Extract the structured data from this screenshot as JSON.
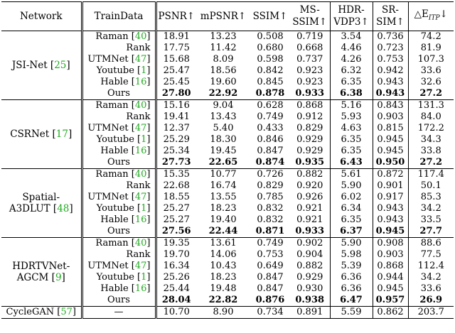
{
  "headers": {
    "network": "Network",
    "traindata": "TrainData",
    "psnr": "PSNR↑",
    "mpsnr": "mPSNR↑",
    "ssim": "SSIM↑",
    "msssim_l1": "MS-",
    "msssim_l2": "SSIM↑",
    "hdrvdp_l1": "HDR-",
    "hdrvdp_l2": "VDP3↑",
    "srsim_l1": "SR-",
    "srsim_l2": "SIM↑",
    "delta_e": "△E",
    "delta_e_sub": "ITP",
    "delta_e_arrow": "↓"
  },
  "groups": [
    {
      "network": "JSI-Net",
      "network_lines": [
        "JSI-Net [25]"
      ],
      "rows": [
        {
          "train": "Raman",
          "cite": "40",
          "vals": [
            "18.91",
            "13.23",
            "0.508",
            "0.719",
            "3.54",
            "0.736",
            "74.2"
          ]
        },
        {
          "train": "Rank",
          "cite": "",
          "vals": [
            "17.75",
            "11.42",
            "0.680",
            "0.668",
            "4.46",
            "0.723",
            "81.9"
          ]
        },
        {
          "train": "UTMNet",
          "cite": "47",
          "vals": [
            "15.68",
            "8.09",
            "0.598",
            "0.737",
            "4.26",
            "0.753",
            "107.3"
          ]
        },
        {
          "train": "Youtube",
          "cite": "1",
          "vals": [
            "25.47",
            "18.56",
            "0.842",
            "0.923",
            "6.32",
            "0.942",
            "33.6"
          ]
        },
        {
          "train": "Hable",
          "cite": "16",
          "vals": [
            "25.45",
            "19.60",
            "0.845",
            "0.923",
            "6.35",
            "0.943",
            "32.6"
          ]
        },
        {
          "train": "Ours",
          "cite": "",
          "vals": [
            "27.80",
            "22.92",
            "0.878",
            "0.933",
            "6.38",
            "0.943",
            "27.2"
          ]
        }
      ]
    },
    {
      "network": "CSRNet",
      "network_lines": [
        "CSRNet [17]"
      ],
      "rows": [
        {
          "train": "Raman",
          "cite": "40",
          "vals": [
            "15.16",
            "9.04",
            "0.628",
            "0.868",
            "5.16",
            "0.843",
            "131.3"
          ]
        },
        {
          "train": "Rank",
          "cite": "",
          "vals": [
            "19.41",
            "13.43",
            "0.749",
            "0.912",
            "5.93",
            "0.903",
            "84.0"
          ]
        },
        {
          "train": "UTMNet",
          "cite": "47",
          "vals": [
            "12.37",
            "5.40",
            "0.433",
            "0.829",
            "4.63",
            "0.815",
            "172.2"
          ]
        },
        {
          "train": "Youtube",
          "cite": "1",
          "vals": [
            "25.29",
            "18.30",
            "0.846",
            "0.929",
            "6.35",
            "0.945",
            "34.3"
          ]
        },
        {
          "train": "Hable",
          "cite": "16",
          "vals": [
            "25.34",
            "19.45",
            "0.847",
            "0.929",
            "6.35",
            "0.945",
            "33.8"
          ]
        },
        {
          "train": "Ours",
          "cite": "",
          "vals": [
            "27.73",
            "22.65",
            "0.874",
            "0.935",
            "6.43",
            "0.950",
            "27.2"
          ]
        }
      ]
    },
    {
      "network": "Spatial-A3DLUT",
      "network_lines": [
        "Spatial-",
        "A3DLUT [48]"
      ],
      "rows": [
        {
          "train": "Raman",
          "cite": "40",
          "vals": [
            "15.35",
            "10.77",
            "0.726",
            "0.882",
            "5.61",
            "0.872",
            "117.4"
          ]
        },
        {
          "train": "Rank",
          "cite": "",
          "vals": [
            "22.68",
            "16.74",
            "0.829",
            "0.920",
            "5.90",
            "0.901",
            "50.1"
          ]
        },
        {
          "train": "UTMNet",
          "cite": "47",
          "vals": [
            "18.55",
            "13.55",
            "0.785",
            "0.926",
            "6.02",
            "0.917",
            "85.3"
          ]
        },
        {
          "train": "Youtube",
          "cite": "1",
          "vals": [
            "25.27",
            "18.23",
            "0.832",
            "0.921",
            "6.34",
            "0.943",
            "34.2"
          ]
        },
        {
          "train": "Hable",
          "cite": "16",
          "vals": [
            "25.27",
            "19.40",
            "0.832",
            "0.921",
            "6.35",
            "0.943",
            "33.5"
          ]
        },
        {
          "train": "Ours",
          "cite": "",
          "vals": [
            "27.56",
            "22.44",
            "0.871",
            "0.933",
            "6.37",
            "0.945",
            "27.7"
          ]
        }
      ]
    },
    {
      "network": "HDRTVNet-AGCM",
      "network_lines": [
        "HDRTVNet-",
        "AGCM [9]"
      ],
      "rows": [
        {
          "train": "Raman",
          "cite": "40",
          "vals": [
            "19.35",
            "13.61",
            "0.749",
            "0.902",
            "5.90",
            "0.908",
            "88.6"
          ]
        },
        {
          "train": "Rank",
          "cite": "",
          "vals": [
            "19.70",
            "14.06",
            "0.753",
            "0.904",
            "5.98",
            "0.903",
            "77.5"
          ]
        },
        {
          "train": "UTMNet",
          "cite": "47",
          "vals": [
            "16.34",
            "10.43",
            "0.649",
            "0.882",
            "5.39",
            "0.868",
            "112.4"
          ]
        },
        {
          "train": "Youtube",
          "cite": "1",
          "vals": [
            "25.26",
            "18.23",
            "0.847",
            "0.929",
            "6.36",
            "0.944",
            "34.2"
          ]
        },
        {
          "train": "Hable",
          "cite": "16",
          "vals": [
            "25.44",
            "19.48",
            "0.847",
            "0.930",
            "6.36",
            "0.945",
            "33.6"
          ]
        },
        {
          "train": "Ours",
          "cite": "",
          "vals": [
            "28.04",
            "22.82",
            "0.876",
            "0.938",
            "6.47",
            "0.957",
            "26.9"
          ]
        }
      ]
    }
  ],
  "last_row": {
    "network": "CycleGAN",
    "cite": "57",
    "train": "—",
    "vals": [
      "10.70",
      "8.90",
      "0.734",
      "0.891",
      "5.59",
      "0.862",
      "203.7"
    ]
  },
  "colors": {
    "citation": "#22aa22",
    "text": "#000000"
  }
}
